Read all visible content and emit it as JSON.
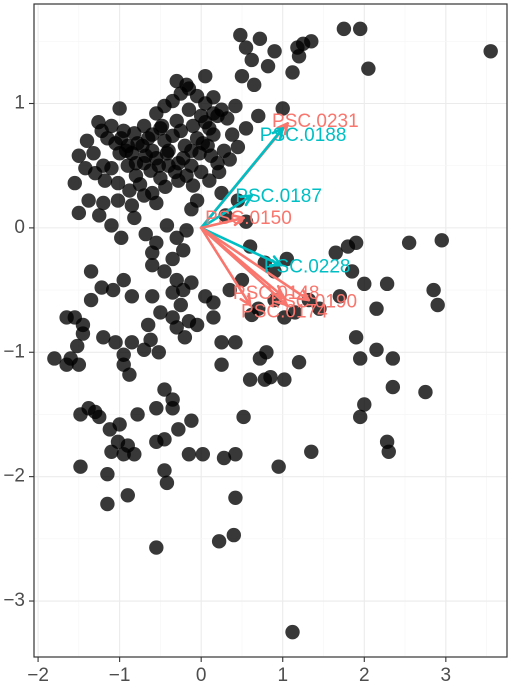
{
  "chart_data": {
    "type": "scatter",
    "title": "",
    "xlabel": "",
    "ylabel": "",
    "xlim": [
      -2.05,
      3.75
    ],
    "ylim": [
      -3.45,
      1.8
    ],
    "x_ticks": [
      -2,
      -1,
      0,
      1,
      2,
      3
    ],
    "y_ticks": [
      1,
      0,
      -1,
      -2,
      -3
    ],
    "x_tick_labels": [
      "−2",
      "−1",
      "0",
      "1",
      "2",
      "3"
    ],
    "y_tick_labels": [
      "1",
      "0",
      "−1",
      "−2",
      "−3"
    ],
    "grid": true,
    "point_color": "#000000",
    "points": [
      [
        -1.5,
        0.58
      ],
      [
        -1.4,
        0.7
      ],
      [
        -1.32,
        0.6
      ],
      [
        -1.22,
        0.78
      ],
      [
        -1.1,
        0.82
      ],
      [
        -1.0,
        0.96
      ],
      [
        -1.26,
        0.85
      ],
      [
        -1.15,
        0.72
      ],
      [
        -1.05,
        0.68
      ],
      [
        -0.95,
        0.78
      ],
      [
        -0.9,
        0.66
      ],
      [
        -0.85,
        0.6
      ],
      [
        -0.8,
        0.52
      ],
      [
        -0.72,
        0.66
      ],
      [
        -0.65,
        0.72
      ],
      [
        -0.6,
        0.62
      ],
      [
        -0.55,
        0.56
      ],
      [
        -0.5,
        0.8
      ],
      [
        -0.45,
        0.7
      ],
      [
        -0.4,
        0.62
      ],
      [
        -0.35,
        0.74
      ],
      [
        -0.3,
        0.86
      ],
      [
        -0.25,
        0.78
      ],
      [
        -0.2,
        0.66
      ],
      [
        -0.15,
        0.95
      ],
      [
        -0.1,
        0.82
      ],
      [
        -0.05,
        0.72
      ],
      [
        0.0,
        0.9
      ],
      [
        0.05,
        0.85
      ],
      [
        0.1,
        0.8
      ],
      [
        0.15,
        0.75
      ],
      [
        0.2,
        0.9
      ],
      [
        0.25,
        0.95
      ],
      [
        -1.2,
        0.5
      ],
      [
        -1.1,
        0.48
      ],
      [
        -1.0,
        0.6
      ],
      [
        -0.9,
        0.5
      ],
      [
        -0.8,
        0.42
      ],
      [
        -0.7,
        0.52
      ],
      [
        -0.62,
        0.46
      ],
      [
        -0.5,
        0.4
      ],
      [
        -0.4,
        0.5
      ],
      [
        -0.32,
        0.45
      ],
      [
        -0.22,
        0.56
      ],
      [
        -0.12,
        0.5
      ],
      [
        -0.02,
        0.6
      ],
      [
        0.08,
        0.66
      ],
      [
        -0.55,
        0.92
      ],
      [
        -0.45,
        0.98
      ],
      [
        -0.35,
        1.02
      ],
      [
        -0.25,
        1.08
      ],
      [
        -0.15,
        1.12
      ],
      [
        -0.05,
        1.06
      ],
      [
        0.05,
        1.0
      ],
      [
        0.15,
        1.05
      ],
      [
        -0.3,
        1.18
      ],
      [
        -0.18,
        1.15
      ],
      [
        0.05,
        1.22
      ],
      [
        -1.55,
        0.36
      ],
      [
        -1.42,
        0.48
      ],
      [
        -1.3,
        0.44
      ],
      [
        -1.18,
        0.38
      ],
      [
        -1.02,
        0.36
      ],
      [
        -0.88,
        0.3
      ],
      [
        -0.75,
        0.35
      ],
      [
        -0.6,
        0.28
      ],
      [
        -0.44,
        0.33
      ],
      [
        -0.28,
        0.38
      ],
      [
        -0.1,
        0.34
      ],
      [
        0.1,
        0.38
      ],
      [
        0.22,
        0.45
      ],
      [
        0.35,
        0.55
      ],
      [
        0.45,
        0.65
      ],
      [
        0.55,
        0.8
      ],
      [
        0.7,
        0.9
      ],
      [
        0.42,
        0.98
      ],
      [
        0.5,
        1.22
      ],
      [
        0.55,
        1.45
      ],
      [
        0.62,
        1.35
      ],
      [
        0.72,
        1.52
      ],
      [
        0.82,
        1.3
      ],
      [
        0.9,
        1.42
      ],
      [
        0.65,
        1.15
      ],
      [
        0.48,
        1.55
      ],
      [
        1.18,
        1.45
      ],
      [
        1.25,
        1.48
      ],
      [
        1.35,
        1.5
      ],
      [
        1.2,
        1.38
      ],
      [
        1.12,
        1.25
      ],
      [
        1.0,
        0.96
      ],
      [
        1.75,
        1.6
      ],
      [
        1.95,
        1.6
      ],
      [
        2.05,
        1.28
      ],
      [
        3.55,
        1.42
      ],
      [
        -1.25,
        0.1
      ],
      [
        -1.1,
        0.02
      ],
      [
        -0.98,
        -0.08
      ],
      [
        -0.82,
        0.08
      ],
      [
        -0.68,
        -0.05
      ],
      [
        -0.55,
        -0.12
      ],
      [
        -0.42,
        0.02
      ],
      [
        -0.3,
        -0.08
      ],
      [
        -0.18,
        -0.02
      ],
      [
        0.3,
        0.1
      ],
      [
        0.45,
        0.22
      ],
      [
        0.55,
        0.05
      ],
      [
        -1.2,
        0.2
      ],
      [
        -1.02,
        0.22
      ],
      [
        -0.85,
        0.18
      ],
      [
        -0.7,
        0.26
      ],
      [
        -0.55,
        0.2
      ],
      [
        0.6,
        -0.15
      ],
      [
        0.78,
        -0.28
      ],
      [
        0.9,
        -0.35
      ],
      [
        1.05,
        -0.25
      ],
      [
        1.65,
        -0.2
      ],
      [
        1.8,
        -0.15
      ],
      [
        1.85,
        -0.35
      ],
      [
        1.9,
        -0.12
      ],
      [
        2.0,
        -0.45
      ],
      [
        2.55,
        -0.12
      ],
      [
        2.95,
        -0.1
      ],
      [
        2.85,
        -0.5
      ],
      [
        2.9,
        -0.62
      ],
      [
        2.28,
        -0.45
      ],
      [
        2.15,
        -0.65
      ],
      [
        1.7,
        -0.55
      ],
      [
        1.45,
        -0.65
      ],
      [
        1.32,
        -0.58
      ],
      [
        1.15,
        -0.68
      ],
      [
        1.02,
        -0.72
      ],
      [
        0.9,
        -0.58
      ],
      [
        0.7,
        -0.65
      ],
      [
        -1.35,
        -0.35
      ],
      [
        -1.22,
        -0.48
      ],
      [
        -1.08,
        -0.5
      ],
      [
        -0.95,
        -0.42
      ],
      [
        -0.85,
        -0.55
      ],
      [
        -0.6,
        -0.3
      ],
      [
        -0.45,
        -0.35
      ],
      [
        -0.35,
        -0.52
      ],
      [
        -0.22,
        -0.5
      ],
      [
        -0.12,
        -0.44
      ],
      [
        -0.6,
        -0.55
      ],
      [
        -0.5,
        -0.68
      ],
      [
        -0.35,
        -0.72
      ],
      [
        -0.25,
        -0.62
      ],
      [
        -0.15,
        -0.75
      ],
      [
        -1.55,
        -0.72
      ],
      [
        -1.45,
        -0.78
      ],
      [
        -1.52,
        -0.95
      ],
      [
        -1.6,
        -1.05
      ],
      [
        -1.5,
        -1.1
      ],
      [
        -1.45,
        -0.85
      ],
      [
        -1.2,
        -0.88
      ],
      [
        -1.05,
        -0.92
      ],
      [
        -0.95,
        -1.02
      ],
      [
        -0.85,
        -0.92
      ],
      [
        -0.7,
        -0.98
      ],
      [
        -0.62,
        -0.9
      ],
      [
        -0.52,
        -1.0
      ],
      [
        -0.3,
        -0.8
      ],
      [
        -0.2,
        -0.88
      ],
      [
        -0.05,
        -0.78
      ],
      [
        0.15,
        -0.72
      ],
      [
        -1.8,
        -1.05
      ],
      [
        -1.65,
        -1.1
      ],
      [
        -0.95,
        -1.1
      ],
      [
        -0.88,
        -1.18
      ],
      [
        0.25,
        -0.92
      ],
      [
        0.42,
        -0.92
      ],
      [
        0.8,
        -1.0
      ],
      [
        1.2,
        -1.08
      ],
      [
        1.9,
        -0.88
      ],
      [
        1.95,
        -1.05
      ],
      [
        2.15,
        -0.98
      ],
      [
        2.35,
        -1.05
      ],
      [
        2.75,
        -1.32
      ],
      [
        2.35,
        -1.28
      ],
      [
        2.0,
        -1.42
      ],
      [
        1.95,
        -1.52
      ],
      [
        0.25,
        -1.1
      ],
      [
        0.6,
        -1.22
      ],
      [
        0.78,
        -1.22
      ],
      [
        0.85,
        -1.2
      ],
      [
        1.02,
        -1.22
      ],
      [
        -0.45,
        -1.3
      ],
      [
        -0.35,
        -1.38
      ],
      [
        -0.35,
        -1.45
      ],
      [
        -0.28,
        -1.62
      ],
      [
        -0.12,
        -1.55
      ],
      [
        -0.55,
        -1.45
      ],
      [
        -0.45,
        -1.7
      ],
      [
        -0.55,
        -1.72
      ],
      [
        -0.78,
        -1.5
      ],
      [
        -1.0,
        -1.58
      ],
      [
        -1.12,
        -1.62
      ],
      [
        -1.25,
        -1.52
      ],
      [
        -1.38,
        -1.45
      ],
      [
        -1.48,
        -1.5
      ],
      [
        -1.3,
        -1.48
      ],
      [
        -1.02,
        -1.72
      ],
      [
        -0.95,
        -1.82
      ],
      [
        -0.9,
        -1.75
      ],
      [
        -1.1,
        -1.8
      ],
      [
        -0.82,
        -1.82
      ],
      [
        -1.48,
        -1.92
      ],
      [
        -0.45,
        -1.95
      ],
      [
        -0.42,
        -2.05
      ],
      [
        -0.15,
        -1.82
      ],
      [
        0.02,
        -1.82
      ],
      [
        0.28,
        -1.85
      ],
      [
        0.42,
        -1.82
      ],
      [
        0.95,
        -1.92
      ],
      [
        1.35,
        -1.8
      ],
      [
        2.28,
        -1.72
      ],
      [
        2.3,
        -1.8
      ],
      [
        -1.15,
        -1.98
      ],
      [
        -0.9,
        -2.15
      ],
      [
        -1.15,
        -2.22
      ],
      [
        0.42,
        -2.17
      ],
      [
        0.4,
        -2.47
      ],
      [
        0.22,
        -2.52
      ],
      [
        -0.55,
        -2.57
      ],
      [
        1.12,
        -3.25
      ],
      [
        0.52,
        -1.52
      ],
      [
        0.72,
        -1.05
      ],
      [
        -0.22,
        -0.18
      ],
      [
        -0.35,
        -0.25
      ],
      [
        -0.6,
        -0.2
      ],
      [
        -1.5,
        0.12
      ],
      [
        -1.65,
        -0.72
      ],
      [
        -0.12,
        0.15
      ],
      [
        -0.05,
        0.22
      ],
      [
        0.25,
        0.28
      ],
      [
        -0.3,
        -0.42
      ],
      [
        -0.65,
        -0.78
      ],
      [
        -1.35,
        -0.58
      ],
      [
        0.05,
        -0.55
      ],
      [
        0.15,
        -0.6
      ],
      [
        0.5,
        -0.42
      ],
      [
        0.35,
        -0.5
      ],
      [
        0.62,
        -0.7
      ],
      [
        -0.42,
        0.6
      ],
      [
        -0.6,
        0.75
      ],
      [
        -0.7,
        0.82
      ],
      [
        -0.82,
        0.76
      ],
      [
        -0.92,
        0.62
      ],
      [
        -0.98,
        0.72
      ],
      [
        -0.12,
        0.62
      ],
      [
        0.02,
        0.68
      ],
      [
        0.12,
        0.58
      ],
      [
        0.2,
        0.52
      ],
      [
        0.28,
        0.62
      ],
      [
        0.38,
        0.75
      ],
      [
        -0.18,
        0.42
      ],
      [
        -0.52,
        0.5
      ],
      [
        -0.68,
        0.58
      ],
      [
        -0.78,
        0.68
      ],
      [
        -1.38,
        0.22
      ],
      [
        0.0,
        0.45
      ],
      [
        -0.28,
        0.52
      ],
      [
        -0.48,
        0.82
      ],
      [
        0.15,
        0.92
      ],
      [
        0.32,
        0.88
      ]
    ],
    "arrows": [
      {
        "label": "PSC.0231",
        "x": 1.06,
        "y": 0.84,
        "color": "#f8766d",
        "label_x": 1.4,
        "label_y": 0.85
      },
      {
        "label": "PSC.0188",
        "x": 1.0,
        "y": 0.8,
        "color": "#00bfc4",
        "label_x": 1.25,
        "label_y": 0.74
      },
      {
        "label": "PSC.0187",
        "x": 0.62,
        "y": 0.26,
        "color": "#00bfc4",
        "label_x": 0.95,
        "label_y": 0.25
      },
      {
        "label": "PSC.0150",
        "x": 0.52,
        "y": 0.08,
        "color": "#f8766d",
        "label_x": 0.58,
        "label_y": 0.07
      },
      {
        "label": "PSC.0228",
        "x": 0.98,
        "y": -0.3,
        "color": "#00bfc4",
        "label_x": 1.3,
        "label_y": -0.32
      },
      {
        "label": "PSC.0148",
        "x": 1.0,
        "y": -0.55,
        "color": "#f8766d",
        "label_x": 0.92,
        "label_y": -0.53
      },
      {
        "label": "PSC.0190",
        "x": 1.32,
        "y": -0.58,
        "color": "#f8766d",
        "label_x": 1.38,
        "label_y": -0.6
      },
      {
        "label": "PSC.0174",
        "x": 1.05,
        "y": -0.62,
        "color": "#f8766d",
        "label_x": 1.02,
        "label_y": -0.68
      },
      {
        "label": "",
        "x": 0.6,
        "y": -0.62,
        "color": "#f8766d",
        "label_x": 0,
        "label_y": 0
      }
    ]
  }
}
